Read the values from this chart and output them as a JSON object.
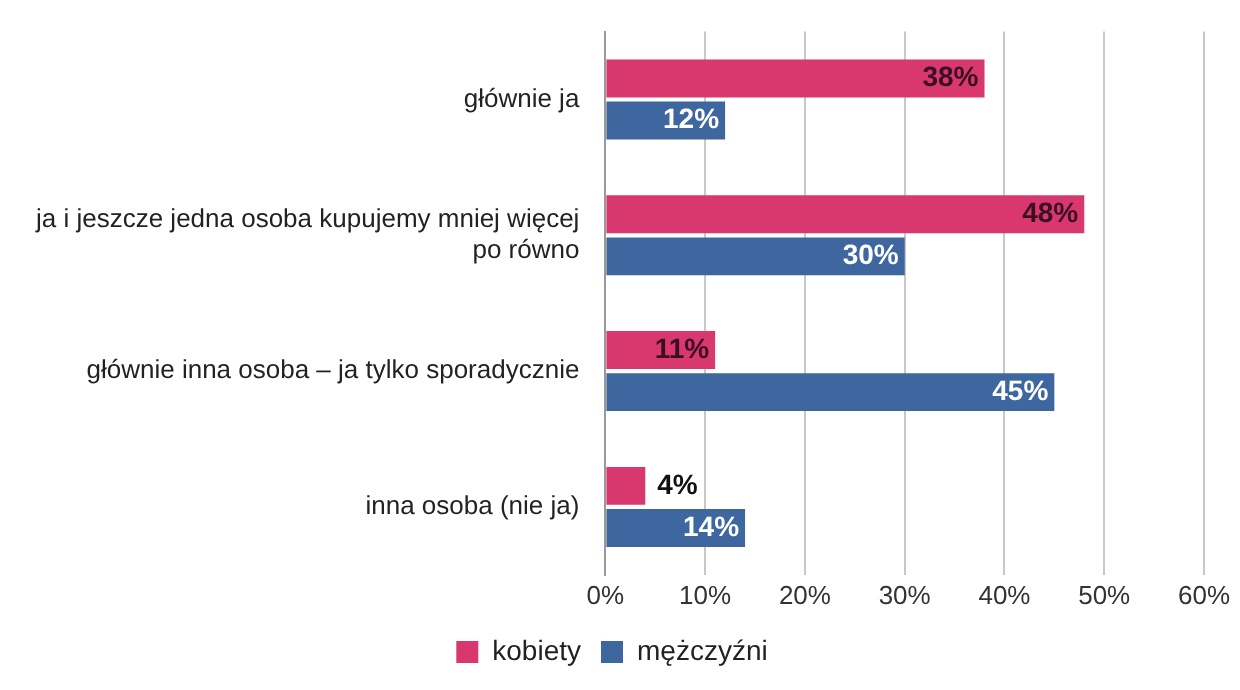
{
  "chart_data": {
    "type": "bar",
    "orientation": "horizontal",
    "categories": [
      "głównie ja",
      "ja i jeszcze jedna osoba kupujemy mniej więcej po równo",
      "głównie inna osoba – ja tylko sporadycznie",
      "inna osoba (nie ja)"
    ],
    "series": [
      {
        "name": "kobiety",
        "color": "#d9386f",
        "values": [
          38,
          48,
          11,
          4
        ],
        "value_labels": [
          "38%",
          "48%",
          "11%",
          "4%"
        ]
      },
      {
        "name": "mężczyźni",
        "color": "#3d679e",
        "values": [
          12,
          30,
          45,
          14
        ],
        "value_labels": [
          "12%",
          "30%",
          "45%",
          "14%"
        ]
      }
    ],
    "xlim": [
      0,
      60
    ],
    "xticks": [
      {
        "value": 0,
        "label": "0%"
      },
      {
        "value": 10,
        "label": "10%"
      },
      {
        "value": 20,
        "label": "20%"
      },
      {
        "value": 30,
        "label": "30%"
      },
      {
        "value": 40,
        "label": "40%"
      },
      {
        "value": 50,
        "label": "50%"
      },
      {
        "value": 60,
        "label": "60%"
      }
    ],
    "grid": "x",
    "legend": "bottom"
  }
}
